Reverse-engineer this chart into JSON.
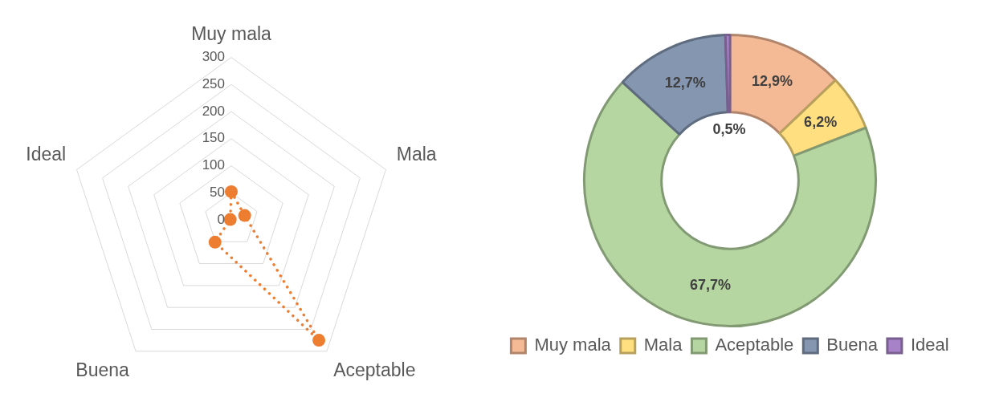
{
  "chart_data": [
    {
      "type": "radar",
      "categories": [
        "Muy mala",
        "Mala",
        "Aceptable",
        "Buena",
        "Ideal"
      ],
      "series": [
        {
          "color": "#ed7d31",
          "values": [
            52,
            26,
            275,
            51,
            2
          ]
        }
      ],
      "ylim": [
        0,
        300
      ],
      "yticks": [
        0,
        50,
        100,
        150,
        200,
        250,
        300
      ],
      "grid": true,
      "marker": "circle",
      "line_style": "dotted"
    },
    {
      "type": "donut",
      "categories": [
        "Muy mala",
        "Mala",
        "Aceptable",
        "Buena",
        "Ideal"
      ],
      "values": [
        12.9,
        6.2,
        67.7,
        12.7,
        0.5
      ],
      "colors": [
        "#f4b995",
        "#ffdf80",
        "#b5d6a0",
        "#8496b0",
        "#a882c8"
      ],
      "value_labels": [
        "12,9%",
        "6,2%",
        "67,7%",
        "12,7%",
        "0,5%"
      ],
      "legend": "bottom"
    }
  ]
}
